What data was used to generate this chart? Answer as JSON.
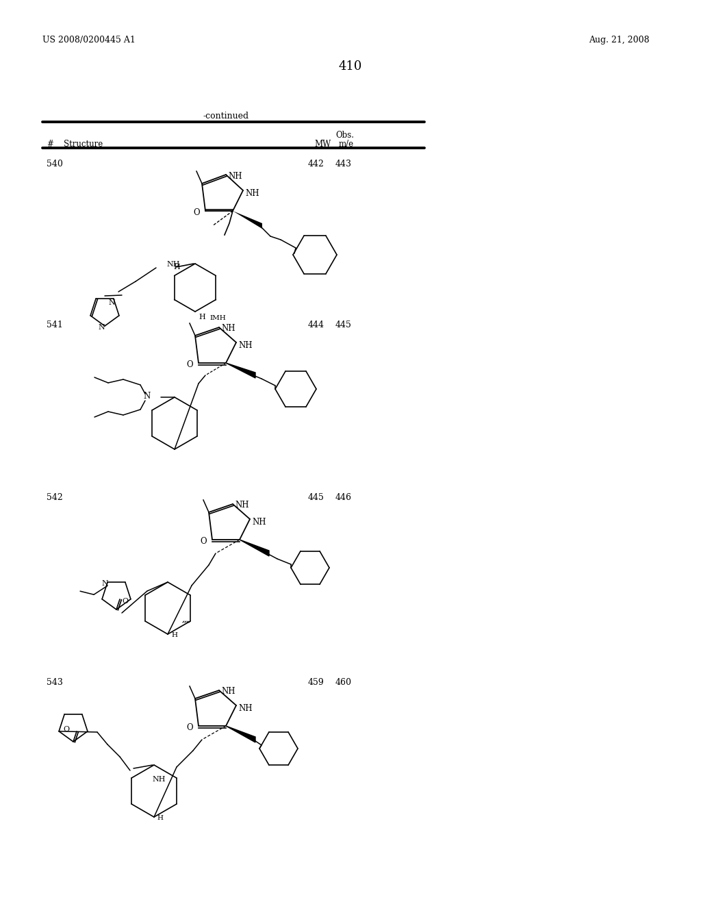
{
  "page_number": "410",
  "patent_number": "US 2008/0200445 A1",
  "patent_date": "Aug. 21, 2008",
  "continued_label": "-continued",
  "table_header": {
    "col1_label": "#",
    "col2_label": "Structure",
    "col3_label": "MW",
    "col4_label": "Obs.\nm/e"
  },
  "compounds": [
    {
      "number": "540",
      "mw": "442",
      "obs": "443"
    },
    {
      "number": "541",
      "mw": "444",
      "obs": "445"
    },
    {
      "number": "542",
      "mw": "445",
      "obs": "446"
    },
    {
      "number": "543",
      "mw": "459",
      "obs": "460"
    }
  ],
  "bg_color": "#ffffff",
  "text_color": "#000000",
  "line_color": "#000000",
  "font_size_header": 9,
  "font_size_body": 9,
  "font_size_page": 10,
  "font_size_patent": 9,
  "font_size_title": 9
}
